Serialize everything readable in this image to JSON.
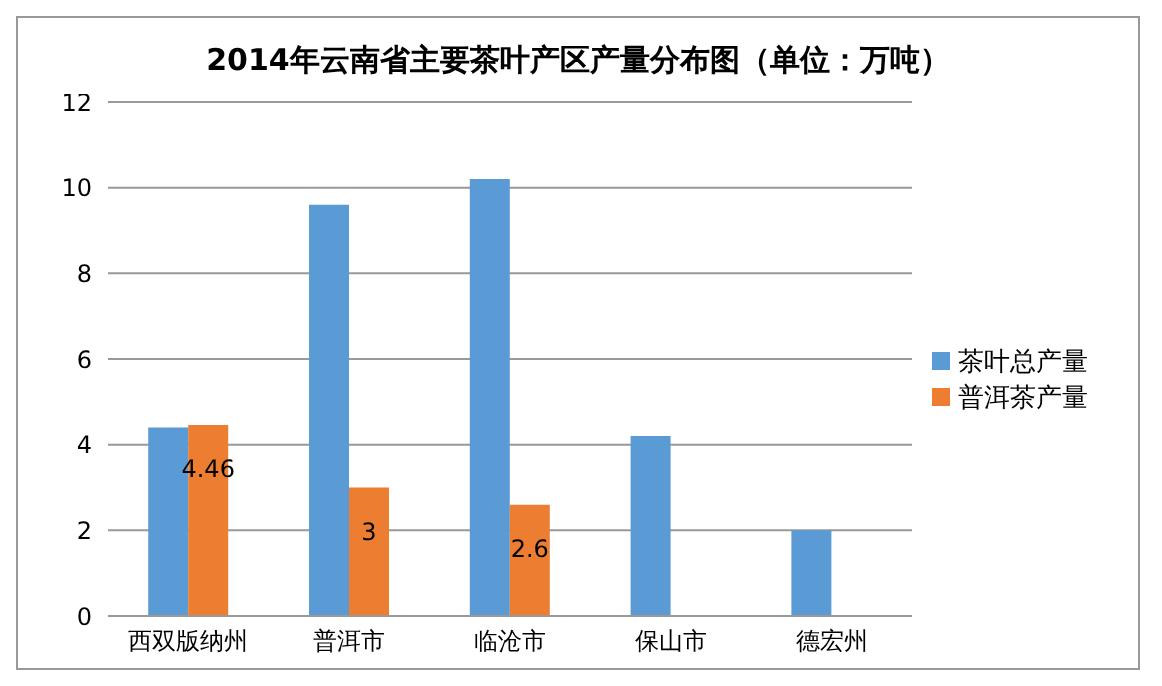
{
  "chart_data": {
    "type": "bar",
    "title": "2014年云南省主要茶叶产区产量分布图（单位：万吨）",
    "categories": [
      "西双版纳州",
      "普洱市",
      "临沧市",
      "保山市",
      "德宏州"
    ],
    "series": [
      {
        "name": "茶叶总产量",
        "color": "#5b9bd5",
        "values": [
          4.4,
          9.6,
          10.2,
          4.2,
          2.0
        ]
      },
      {
        "name": "普洱茶产量",
        "color": "#ed7d31",
        "values": [
          4.46,
          3,
          2.6,
          null,
          null
        ],
        "value_labels": [
          "4.46",
          "3",
          "2.6",
          null,
          null
        ]
      }
    ],
    "ylim": [
      0,
      12
    ],
    "yticks": [
      0,
      2,
      4,
      6,
      8,
      10,
      12
    ],
    "grid": "y",
    "legend": "right"
  }
}
